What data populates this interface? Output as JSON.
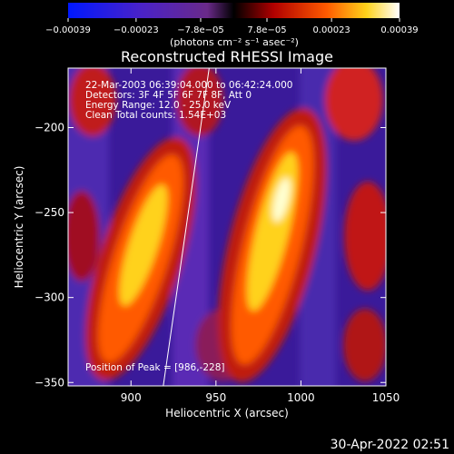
{
  "chart_data": {
    "type": "heatmap",
    "title": "Reconstructed RHESSI Image",
    "xlabel": "Heliocentric X (arcsec)",
    "ylabel": "Heliocentric Y (arcsec)",
    "xlim": [
      863,
      1050
    ],
    "ylim": [
      -352,
      -165
    ],
    "x_ticks": [
      900,
      950,
      1000,
      1050
    ],
    "y_ticks": [
      -200,
      -250,
      -300,
      -350
    ],
    "x_tick_labels": [
      "900",
      "950",
      "1000",
      "1050"
    ],
    "y_tick_labels": [
      "−200",
      "−250",
      "−300",
      "−350"
    ],
    "colorbar": {
      "min": -0.00039,
      "max": 0.00039,
      "tick_values": [
        -0.00039,
        -0.00023,
        -7.8e-05,
        7.8e-05,
        0.00023,
        0.00039
      ],
      "tick_labels": [
        "−0.00039",
        "−0.00023",
        "−7.8e−05",
        "7.8e−05",
        "0.00023",
        "0.00039"
      ],
      "unit_label": "(photons cm⁻² s⁻¹ asec⁻²)"
    },
    "annotations": [
      "22-Mar-2003 06:39:04.000 to 06:42:24.000",
      "Detectors: 3F 4F 5F 6F 7F 8F, Att 0",
      "Energy Range: 12.0 - 25.0 keV",
      "Clean     Total counts: 1.54E+03"
    ],
    "peak_label": "Position of Peak = [986,-228]",
    "limb_line": {
      "x": [
        919,
        946
      ],
      "y": [
        -352,
        -165
      ]
    },
    "grid": false
  },
  "footer": {
    "timestamp": "30-Apr-2022 02:51"
  }
}
